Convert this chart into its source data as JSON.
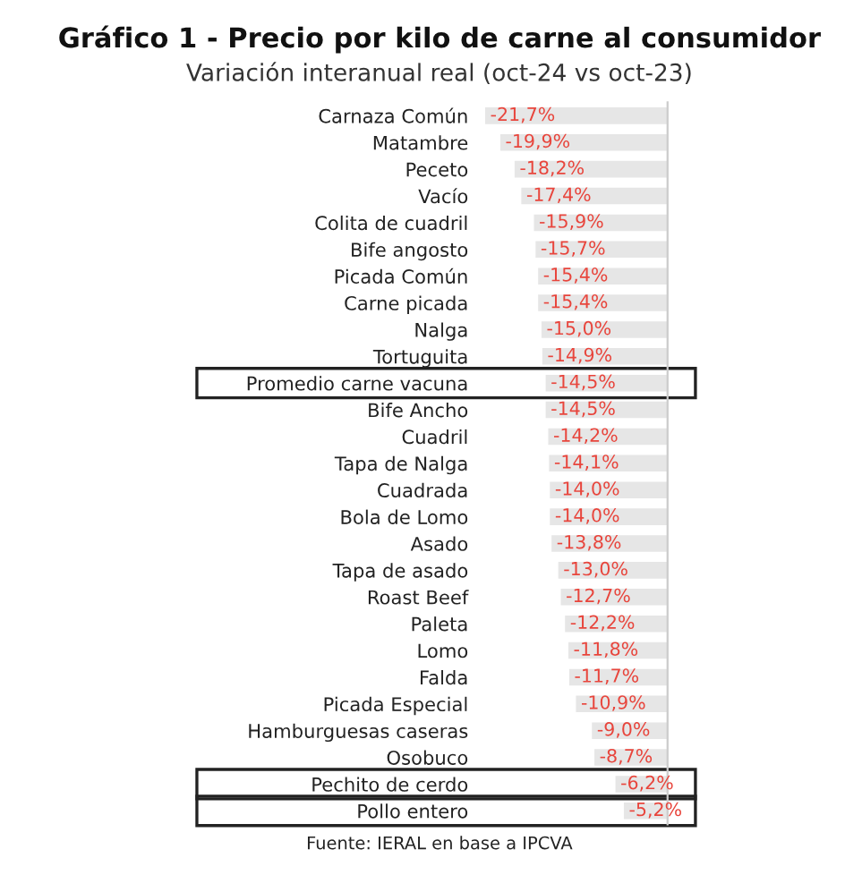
{
  "chart_data": {
    "type": "bar",
    "orientation": "horizontal",
    "title": "Gráfico 1 - Precio por kilo de carne al consumidor",
    "subtitle": "Variación interanual real (oct-24 vs oct-23)",
    "categories": [
      "Carnaza Común",
      "Matambre",
      "Peceto",
      "Vacío",
      "Colita de cuadril",
      "Bife angosto",
      "Picada Común",
      "Carne picada",
      "Nalga",
      "Tortuguita",
      "Promedio carne vacuna",
      "Bife Ancho",
      "Cuadril",
      "Tapa de Nalga",
      "Cuadrada",
      "Bola de Lomo",
      "Asado",
      "Tapa de asado",
      "Roast Beef",
      "Paleta",
      "Lomo",
      "Falda",
      "Picada Especial",
      "Hamburguesas caseras",
      "Osobuco",
      "Pechito de cerdo",
      "Pollo entero"
    ],
    "values": [
      -21.7,
      -19.9,
      -18.2,
      -17.4,
      -15.9,
      -15.7,
      -15.4,
      -15.4,
      -15.0,
      -14.9,
      -14.5,
      -14.5,
      -14.2,
      -14.1,
      -14.0,
      -14.0,
      -13.8,
      -13.0,
      -12.7,
      -12.2,
      -11.8,
      -11.7,
      -10.9,
      -9.0,
      -8.7,
      -6.2,
      -5.2
    ],
    "value_labels": [
      "-21,7%",
      "-19,9%",
      "-18,2%",
      "-17,4%",
      "-15,9%",
      "-15,7%",
      "-15,4%",
      "-15,4%",
      "-15,0%",
      "-14,9%",
      "-14,5%",
      "-14,5%",
      "-14,2%",
      "-14,1%",
      "-14,0%",
      "-14,0%",
      "-13,8%",
      "-13,0%",
      "-12,7%",
      "-12,2%",
      "-11,8%",
      "-11,7%",
      "-10,9%",
      "-9,0%",
      "-8,7%",
      "-6,2%",
      "-5,2%"
    ],
    "color": "#e6e6e6",
    "annotations": [
      "Fuente: IERAL en base a IPCVA"
    ],
    "grid": false,
    "legend": false
  }
}
